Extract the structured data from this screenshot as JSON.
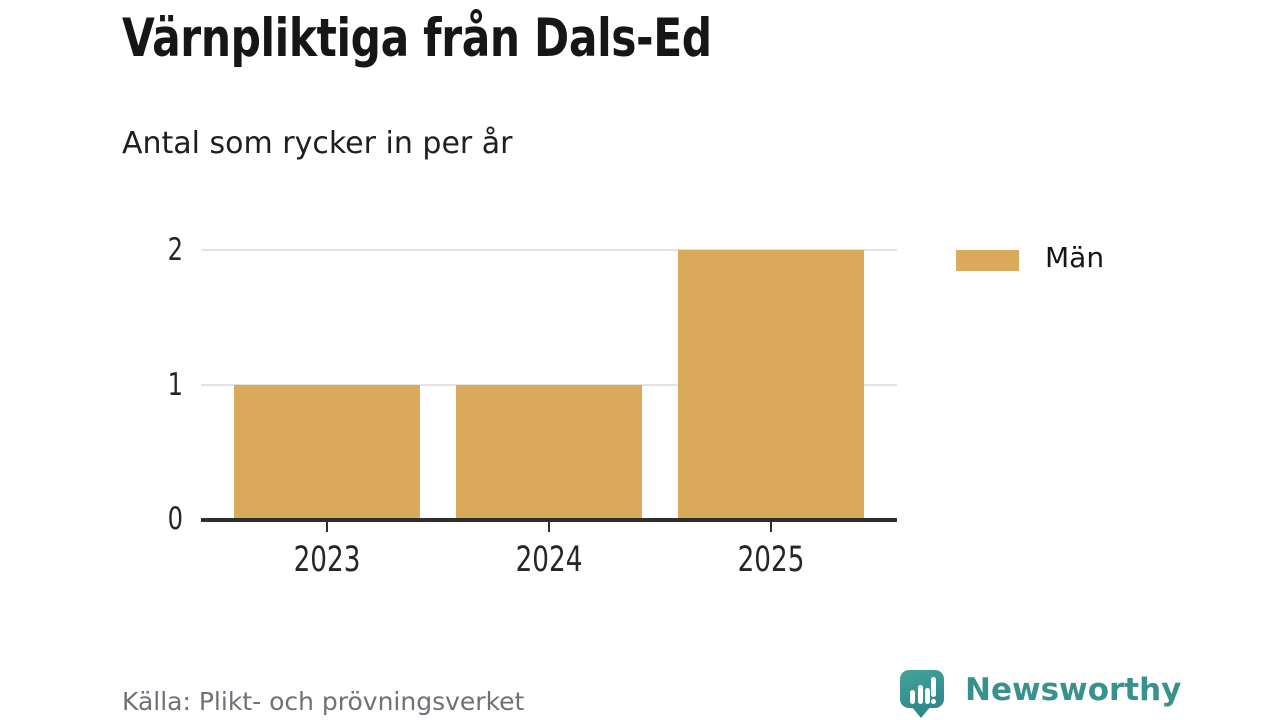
{
  "title": "Värnpliktiga från Dals-Ed",
  "subtitle": "Antal som rycker in per år",
  "source": "Källa: Plikt- och prövningsverket",
  "branding": {
    "logo_text": "Newsworthy",
    "logo_icon": "newsworthy-speech-bubble-bar-chart-icon",
    "teal": "#39918e"
  },
  "legend": [
    {
      "label": "Män",
      "color": "#daa95c"
    }
  ],
  "colors": {
    "bar": "#daa95c",
    "axis": "#2e2e2e",
    "gridline": "#e3e3e3",
    "title_text": "#161616",
    "muted_text": "#6e7278"
  },
  "chart_data": {
    "type": "bar",
    "categories": [
      "2023",
      "2024",
      "2025"
    ],
    "series": [
      {
        "name": "Män",
        "color": "#daa95c",
        "values": [
          1,
          1,
          2
        ]
      }
    ],
    "title": "Värnpliktiga från Dals-Ed",
    "subtitle": "Antal som rycker in per år",
    "xlabel": "",
    "ylabel": "",
    "yticks": [
      0,
      1,
      2
    ],
    "ylim": [
      0,
      2
    ],
    "grid": "horizontal",
    "legend_position": "right-top"
  }
}
